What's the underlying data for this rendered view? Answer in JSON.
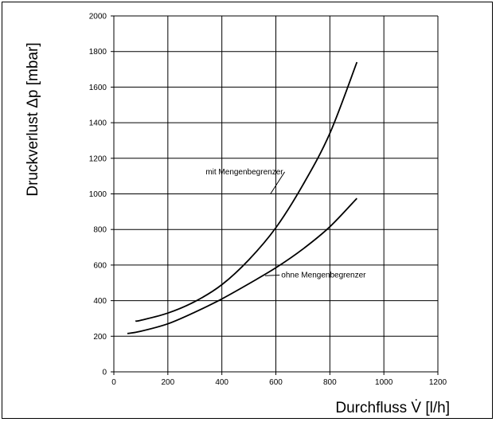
{
  "chart_data": {
    "type": "line",
    "title": "",
    "xlabel": "Durchfluss V̇ [l/h]",
    "ylabel": "Druckverlust Δp [mbar]",
    "xlim": [
      0,
      1200
    ],
    "ylim": [
      0,
      2000
    ],
    "x_ticks": [
      0,
      200,
      400,
      600,
      800,
      1000,
      1200
    ],
    "y_ticks": [
      0,
      200,
      400,
      600,
      800,
      1000,
      1200,
      1400,
      1600,
      1800,
      2000
    ],
    "grid": true,
    "colors": {
      "line": "#000000",
      "grid": "#000000",
      "background": "#ffffff"
    },
    "series": [
      {
        "x": [
          80,
          100,
          200,
          300,
          400,
          500,
          600,
          700,
          800,
          900
        ],
        "y": [
          285,
          290,
          330,
          395,
          490,
          630,
          810,
          1050,
          1340,
          1740
        ]
      },
      {
        "x": [
          50,
          100,
          200,
          300,
          400,
          500,
          600,
          700,
          800,
          900
        ],
        "y": [
          215,
          228,
          270,
          335,
          410,
          495,
          585,
          690,
          815,
          975
        ]
      }
    ],
    "annotations": [
      {
        "text": "mit Mengenbegrenzer",
        "x": 340,
        "y": 1110,
        "series": 0,
        "target": [
          580,
          1000
        ]
      },
      {
        "text": "ohne Mengenbegrenzer",
        "x": 620,
        "y": 530,
        "series": 1,
        "target": [
          560,
          540
        ]
      }
    ]
  }
}
